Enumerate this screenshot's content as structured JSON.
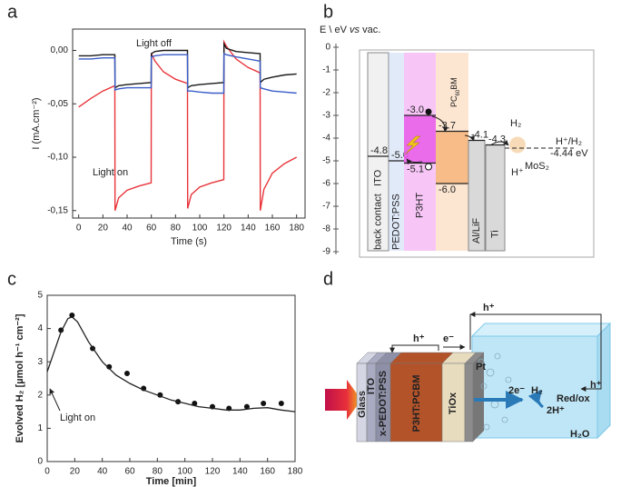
{
  "chart_data": [
    {
      "type": "line",
      "panel_label": "a",
      "xlabel": "Time (s)",
      "ylabel": "I (mA.cm⁻²)",
      "annotations": [
        "Light off",
        "Light on"
      ],
      "xlim": [
        -5,
        187
      ],
      "xticks": [
        0,
        20,
        40,
        60,
        80,
        100,
        120,
        140,
        160,
        180
      ],
      "ylim": [
        -0.157,
        0.02
      ],
      "yticks": [
        {
          "value": 0,
          "label": "0,00"
        },
        {
          "value": -0.05,
          "label": "-0,05"
        },
        {
          "value": -0.1,
          "label": "-0,10"
        },
        {
          "value": -0.15,
          "label": "-0,15"
        }
      ],
      "x": [
        0,
        10,
        20,
        29.9,
        30,
        33,
        40,
        50,
        59.9,
        60,
        63,
        70,
        80,
        89.9,
        90,
        93,
        100,
        110,
        119.9,
        120,
        122,
        130,
        140,
        149.9,
        150,
        153,
        160,
        170,
        180
      ],
      "series": [
        {
          "color": "#e8343a",
          "values": [
            -0.053,
            -0.045,
            -0.038,
            -0.033,
            -0.15,
            -0.138,
            -0.131,
            -0.127,
            -0.124,
            -0.003,
            -0.01,
            -0.02,
            -0.027,
            -0.031,
            -0.148,
            -0.135,
            -0.128,
            -0.124,
            -0.121,
            0.008,
            0.004,
            -0.008,
            -0.016,
            -0.021,
            -0.15,
            -0.13,
            -0.115,
            -0.106,
            -0.1
          ]
        },
        {
          "color": "#1a1a1a",
          "values": [
            -0.005,
            -0.005,
            -0.004,
            -0.004,
            -0.035,
            -0.033,
            -0.032,
            -0.031,
            -0.03,
            -0.003,
            -0.001,
            0,
            0,
            0,
            -0.035,
            -0.033,
            -0.032,
            -0.031,
            -0.03,
            0.006,
            0.002,
            -0.001,
            -0.002,
            -0.003,
            -0.03,
            -0.027,
            -0.025,
            -0.023,
            -0.022
          ]
        },
        {
          "color": "#3a5cc8",
          "values": [
            -0.008,
            -0.008,
            -0.007,
            -0.007,
            -0.037,
            -0.036,
            -0.035,
            -0.035,
            -0.035,
            -0.006,
            -0.005,
            -0.004,
            -0.004,
            -0.004,
            -0.038,
            -0.038,
            -0.039,
            -0.04,
            -0.04,
            -0.003,
            -0.004,
            -0.006,
            -0.008,
            -0.01,
            -0.035,
            -0.036,
            -0.038,
            -0.039,
            -0.04
          ]
        }
      ]
    },
    {
      "type": "energy-levels",
      "panel_label": "b",
      "ylabel": [
        "E \\ eV ",
        "vs",
        " vac."
      ],
      "ylim": [
        0,
        -9
      ],
      "yticks": [
        0,
        -1,
        -2,
        -3,
        -4,
        -5,
        -6,
        -7,
        -8,
        -9
      ],
      "layers": [
        {
          "name": [
            "back contact",
            "ITO"
          ],
          "levels": [
            -4.8
          ],
          "level_labels": [
            "-4.8"
          ],
          "color": "#d6d6d6"
        },
        {
          "name": [
            "PEDOT:PSS"
          ],
          "levels": [
            -5.0
          ],
          "level_labels": [
            "-5.0"
          ],
          "color": "#a9c2ee"
        },
        {
          "name": [
            "P3HT"
          ],
          "levels": [
            -3.0,
            -5.1
          ],
          "level_labels": [
            "-3.0",
            "-5.1"
          ],
          "color": "#e85ce8"
        },
        {
          "name": [
            "PC",
            "60",
            "BM"
          ],
          "levels": [
            -3.7,
            -6.0
          ],
          "level_labels": [
            "-3.7",
            "-6.0"
          ],
          "color": "#f6b57a"
        },
        {
          "name": [
            "Al/LiF"
          ],
          "levels": [
            -4.1
          ],
          "level_labels": [
            "-4.1"
          ],
          "color": "#cfcfcf"
        },
        {
          "name": [
            "Ti"
          ],
          "levels": [
            -4.3
          ],
          "level_labels": [
            "-4.3"
          ],
          "color": "#cfcfcf"
        }
      ],
      "redox": {
        "value": -4.44,
        "label": "-4.44 eV",
        "couple": "H⁺/H₂"
      },
      "catalyst": "MoS₂",
      "species": [
        "H₂",
        "H⁺"
      ]
    },
    {
      "type": "scatter-line",
      "panel_label": "c",
      "xlabel": "Time [min]",
      "ylabel": "Evolved H₂ [µmol h⁻¹ cm⁻²]",
      "annotations": [
        "Light on"
      ],
      "xlim": [
        0,
        180
      ],
      "xticks": [
        0,
        20,
        40,
        60,
        80,
        100,
        120,
        140,
        160,
        180
      ],
      "ylim": [
        0,
        5
      ],
      "yticks": [
        0,
        1,
        2,
        3,
        4,
        5
      ],
      "series": [
        {
          "mode": "markers",
          "color": "#111111",
          "x": [
            10,
            18,
            33,
            45,
            58,
            70,
            82,
            95,
            107,
            120,
            132,
            145,
            157,
            170
          ],
          "values": [
            3.95,
            4.4,
            3.4,
            2.85,
            2.65,
            2.2,
            2.0,
            1.8,
            1.75,
            1.65,
            1.6,
            1.65,
            1.75,
            1.75
          ]
        },
        {
          "mode": "lines",
          "color": "#222222",
          "x": [
            0,
            5,
            10,
            15,
            18,
            22,
            30,
            40,
            50,
            60,
            70,
            80,
            90,
            100,
            110,
            120,
            130,
            140,
            150,
            160,
            170,
            180
          ],
          "values": [
            2.7,
            3.3,
            3.9,
            4.3,
            4.35,
            4.2,
            3.6,
            3.0,
            2.6,
            2.35,
            2.15,
            2.0,
            1.85,
            1.75,
            1.65,
            1.6,
            1.55,
            1.55,
            1.6,
            1.62,
            1.55,
            1.5
          ]
        }
      ]
    }
  ],
  "diagram": {
    "panel_label": "d",
    "layers": [
      "Glass",
      "ITO",
      "x-PEDOT:PSS",
      "P3HT:PCBM",
      "TiOx"
    ],
    "labels": [
      "h⁺",
      "e⁻",
      "h⁺",
      "Pt",
      "2e⁻",
      "H₂",
      "2H⁺",
      "Red/ox",
      "h⁺",
      "H₂O"
    ]
  }
}
